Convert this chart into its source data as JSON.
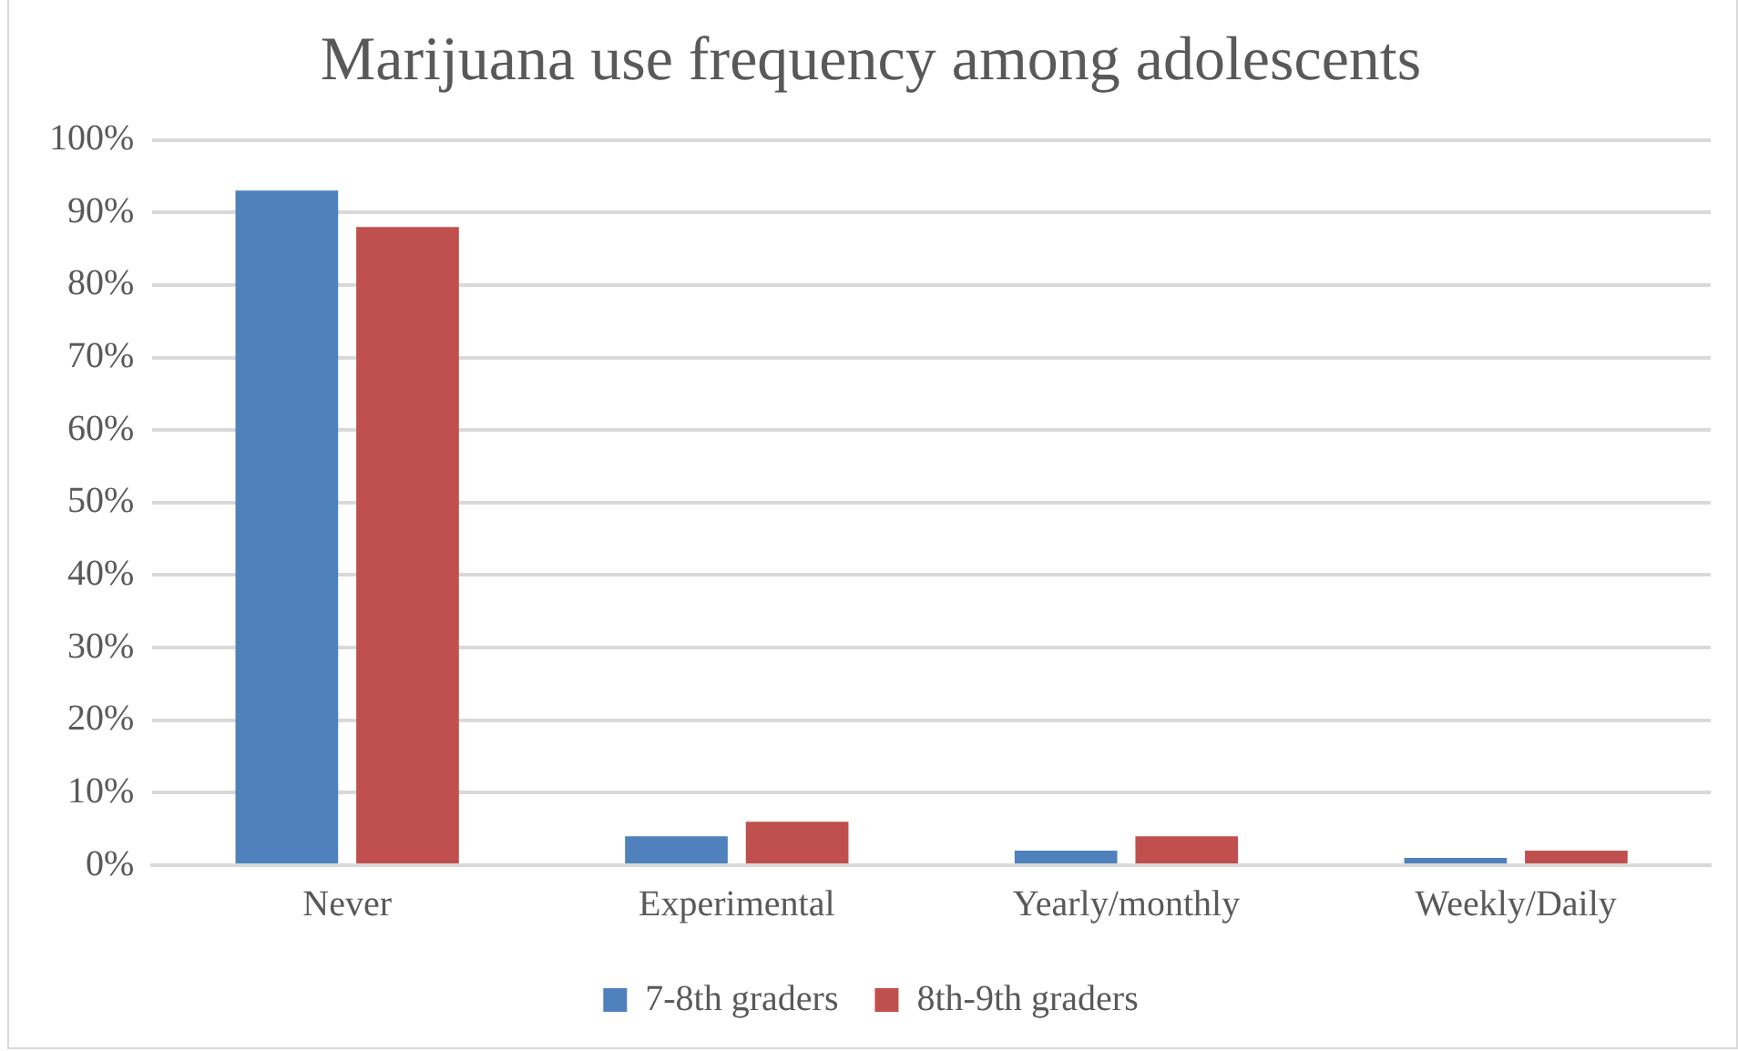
{
  "chart_data": {
    "type": "bar",
    "title": "Marijuana use frequency among adolescents",
    "categories": [
      "Never",
      "Experimental",
      "Yearly/monthly",
      "Weekly/Daily"
    ],
    "series": [
      {
        "name": "7-8th graders",
        "color": "#4f81bd",
        "values": [
          93,
          4,
          2,
          1
        ]
      },
      {
        "name": "8th-9th graders",
        "color": "#c0504d",
        "values": [
          88,
          6,
          4,
          2
        ]
      }
    ],
    "ylim": [
      0,
      100
    ],
    "yticks": [
      {
        "value": 0,
        "label": "0%"
      },
      {
        "value": 10,
        "label": "10%"
      },
      {
        "value": 20,
        "label": "20%"
      },
      {
        "value": 30,
        "label": "30%"
      },
      {
        "value": 40,
        "label": "40%"
      },
      {
        "value": 50,
        "label": "50%"
      },
      {
        "value": 60,
        "label": "60%"
      },
      {
        "value": 70,
        "label": "70%"
      },
      {
        "value": 80,
        "label": "80%"
      },
      {
        "value": 90,
        "label": "90%"
      },
      {
        "value": 100,
        "label": "100%"
      }
    ],
    "grid": "y",
    "legend": "bottom"
  }
}
